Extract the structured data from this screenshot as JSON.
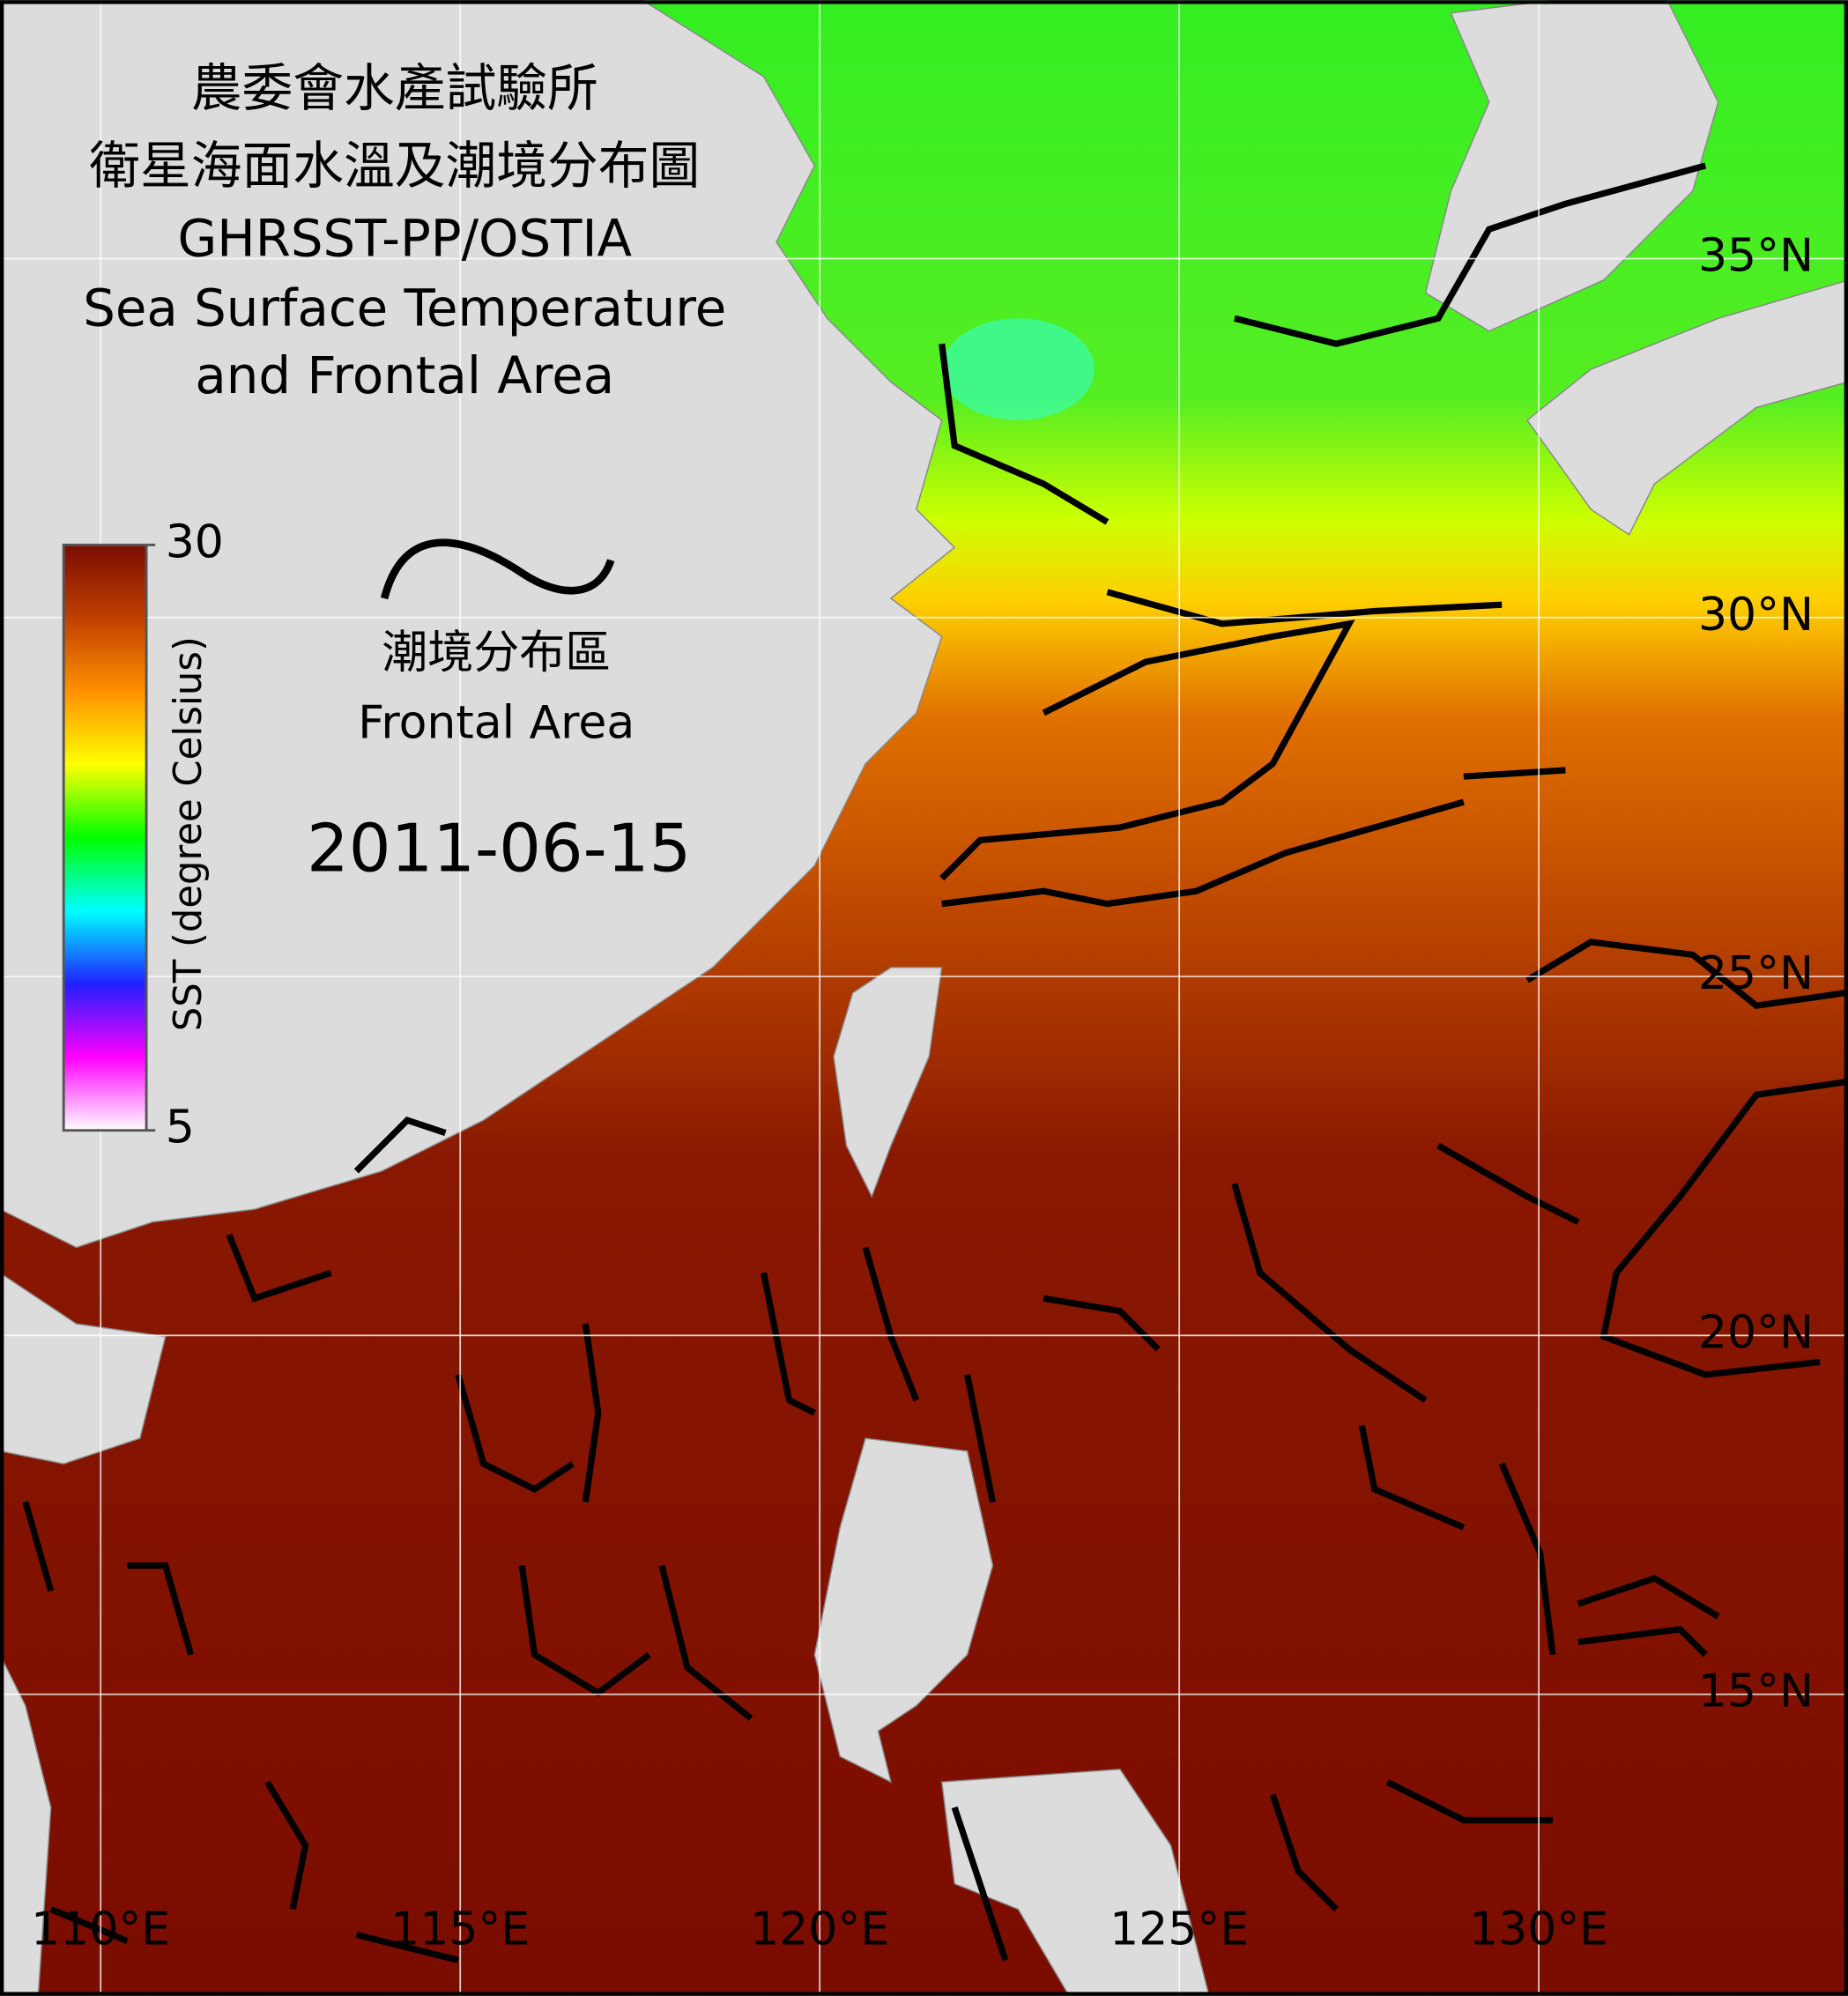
{
  "title": {
    "lines": [
      "農委會水產試驗所",
      "衛星海面水溫及潮境分布圖",
      "GHRSST-PP/OSTIA",
      "Sea Surface Temperature",
      "and Frontal Area"
    ]
  },
  "colorbar": {
    "label": "SST (degree Celsius)",
    "range": [
      5,
      30
    ],
    "ticks": [
      5,
      30
    ],
    "colors": [
      "#ffffff",
      "#ff00ff",
      "#2020ff",
      "#00ffff",
      "#00ff00",
      "#ffff00",
      "#ff9000",
      "#c04000",
      "#7a0c00"
    ]
  },
  "front_legend": {
    "label_zh": "潮境分布區",
    "label_en": "Frontal Area"
  },
  "date": "2011-06-15",
  "map": {
    "lonlim": [
      108.6,
      134.3
    ],
    "latlim": [
      10.8,
      38.6
    ],
    "grid": true,
    "lon_ticks": [
      {
        "value": 110,
        "label": "110°E"
      },
      {
        "value": 115,
        "label": "115°E"
      },
      {
        "value": 120,
        "label": "120°E"
      },
      {
        "value": 125,
        "label": "125°E"
      },
      {
        "value": 130,
        "label": "130°E"
      }
    ],
    "lat_ticks": [
      {
        "value": 35,
        "label": "35°N"
      },
      {
        "value": 30,
        "label": "30°N"
      },
      {
        "value": 25,
        "label": "25°N"
      },
      {
        "value": 20,
        "label": "20°N"
      },
      {
        "value": 15,
        "label": "15°N"
      }
    ]
  }
}
